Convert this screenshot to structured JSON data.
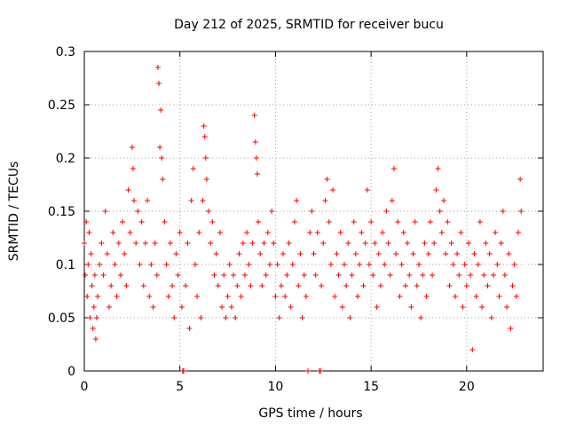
{
  "chart_data": {
    "type": "scatter",
    "title": "Day 212 of 2025, SRMTID for receiver bucu",
    "xlabel": "GPS time / hours",
    "ylabel": "SRMTID / TECUs",
    "xlim": [
      0,
      24
    ],
    "ylim": [
      0,
      0.3
    ],
    "xticks": [
      0,
      5,
      10,
      15,
      20
    ],
    "xtick_labels": [
      "0",
      "5",
      "10",
      "15",
      "20"
    ],
    "yticks": [
      0,
      0.05,
      0.1,
      0.15,
      0.2,
      0.25,
      0.3
    ],
    "ytick_labels": [
      "0",
      "0.05",
      "0.1",
      "0.15",
      "0.2",
      "0.25",
      "0.3"
    ],
    "grid": true,
    "marker": "+",
    "series_color": "#ff0000",
    "series": [
      {
        "name": "SRMTID",
        "points": [
          [
            0.0,
            0.12
          ],
          [
            0.05,
            0.09
          ],
          [
            0.1,
            0.14
          ],
          [
            0.15,
            0.07
          ],
          [
            0.2,
            0.1
          ],
          [
            0.25,
            0.13
          ],
          [
            0.3,
            0.05
          ],
          [
            0.35,
            0.11
          ],
          [
            0.4,
            0.08
          ],
          [
            0.45,
            0.04
          ],
          [
            0.5,
            0.06
          ],
          [
            0.55,
            0.09
          ],
          [
            0.6,
            0.03
          ],
          [
            0.65,
            0.05
          ],
          [
            0.7,
            0.07
          ],
          [
            0.8,
            0.1
          ],
          [
            0.9,
            0.12
          ],
          [
            1.0,
            0.09
          ],
          [
            1.1,
            0.15
          ],
          [
            1.2,
            0.11
          ],
          [
            1.3,
            0.06
          ],
          [
            1.4,
            0.08
          ],
          [
            1.5,
            0.13
          ],
          [
            1.6,
            0.1
          ],
          [
            1.7,
            0.07
          ],
          [
            1.8,
            0.12
          ],
          [
            1.9,
            0.09
          ],
          [
            2.0,
            0.14
          ],
          [
            2.1,
            0.11
          ],
          [
            2.2,
            0.08
          ],
          [
            2.3,
            0.17
          ],
          [
            2.4,
            0.13
          ],
          [
            2.5,
            0.21
          ],
          [
            2.55,
            0.19
          ],
          [
            2.6,
            0.16
          ],
          [
            2.7,
            0.12
          ],
          [
            2.8,
            0.15
          ],
          [
            2.9,
            0.1
          ],
          [
            3.0,
            0.14
          ],
          [
            3.1,
            0.08
          ],
          [
            3.2,
            0.12
          ],
          [
            3.3,
            0.16
          ],
          [
            3.4,
            0.07
          ],
          [
            3.5,
            0.1
          ],
          [
            3.6,
            0.06
          ],
          [
            3.7,
            0.12
          ],
          [
            3.8,
            0.09
          ],
          [
            3.85,
            0.285
          ],
          [
            3.9,
            0.27
          ],
          [
            3.95,
            0.21
          ],
          [
            4.0,
            0.245
          ],
          [
            4.05,
            0.2
          ],
          [
            4.1,
            0.18
          ],
          [
            4.2,
            0.14
          ],
          [
            4.3,
            0.1
          ],
          [
            4.4,
            0.07
          ],
          [
            4.5,
            0.12
          ],
          [
            4.6,
            0.08
          ],
          [
            4.7,
            0.05
          ],
          [
            4.8,
            0.11
          ],
          [
            4.9,
            0.09
          ],
          [
            5.0,
            0.13
          ],
          [
            5.1,
            0.06
          ],
          [
            5.15,
            0.0
          ],
          [
            5.2,
            0.0
          ],
          [
            5.3,
            0.08
          ],
          [
            5.4,
            0.12
          ],
          [
            5.5,
            0.04
          ],
          [
            5.6,
            0.16
          ],
          [
            5.7,
            0.19
          ],
          [
            5.8,
            0.1
          ],
          [
            5.9,
            0.07
          ],
          [
            6.0,
            0.13
          ],
          [
            6.1,
            0.05
          ],
          [
            6.2,
            0.16
          ],
          [
            6.25,
            0.23
          ],
          [
            6.3,
            0.22
          ],
          [
            6.35,
            0.2
          ],
          [
            6.4,
            0.18
          ],
          [
            6.5,
            0.15
          ],
          [
            6.6,
            0.12
          ],
          [
            6.7,
            0.14
          ],
          [
            6.8,
            0.09
          ],
          [
            6.9,
            0.11
          ],
          [
            7.0,
            0.08
          ],
          [
            7.1,
            0.13
          ],
          [
            7.2,
            0.06
          ],
          [
            7.3,
            0.09
          ],
          [
            7.4,
            0.05
          ],
          [
            7.5,
            0.07
          ],
          [
            7.6,
            0.1
          ],
          [
            7.7,
            0.06
          ],
          [
            7.8,
            0.09
          ],
          [
            7.9,
            0.05
          ],
          [
            8.0,
            0.08
          ],
          [
            8.1,
            0.11
          ],
          [
            8.2,
            0.07
          ],
          [
            8.3,
            0.12
          ],
          [
            8.4,
            0.09
          ],
          [
            8.5,
            0.13
          ],
          [
            8.6,
            0.1
          ],
          [
            8.7,
            0.08
          ],
          [
            8.8,
            0.12
          ],
          [
            8.9,
            0.24
          ],
          [
            8.95,
            0.215
          ],
          [
            9.0,
            0.2
          ],
          [
            9.05,
            0.185
          ],
          [
            9.1,
            0.14
          ],
          [
            9.2,
            0.11
          ],
          [
            9.3,
            0.08
          ],
          [
            9.4,
            0.12
          ],
          [
            9.5,
            0.09
          ],
          [
            9.6,
            0.13
          ],
          [
            9.7,
            0.1
          ],
          [
            9.8,
            0.15
          ],
          [
            9.9,
            0.12
          ],
          [
            10.0,
            0.07
          ],
          [
            10.1,
            0.1
          ],
          [
            10.2,
            0.05
          ],
          [
            10.3,
            0.08
          ],
          [
            10.4,
            0.11
          ],
          [
            10.5,
            0.07
          ],
          [
            10.6,
            0.09
          ],
          [
            10.7,
            0.12
          ],
          [
            10.8,
            0.06
          ],
          [
            10.9,
            0.1
          ],
          [
            11.0,
            0.14
          ],
          [
            11.1,
            0.16
          ],
          [
            11.2,
            0.08
          ],
          [
            11.3,
            0.11
          ],
          [
            11.4,
            0.05
          ],
          [
            11.5,
            0.09
          ],
          [
            11.6,
            0.07
          ],
          [
            11.7,
            0.0
          ],
          [
            11.8,
            0.13
          ],
          [
            11.9,
            0.15
          ],
          [
            12.0,
            0.11
          ],
          [
            12.1,
            0.09
          ],
          [
            12.2,
            0.13
          ],
          [
            12.3,
            0.0
          ],
          [
            12.35,
            0.0
          ],
          [
            12.4,
            0.08
          ],
          [
            12.5,
            0.12
          ],
          [
            12.6,
            0.16
          ],
          [
            12.7,
            0.18
          ],
          [
            12.8,
            0.14
          ],
          [
            12.9,
            0.1
          ],
          [
            13.0,
            0.17
          ],
          [
            13.1,
            0.07
          ],
          [
            13.2,
            0.11
          ],
          [
            13.3,
            0.09
          ],
          [
            13.4,
            0.13
          ],
          [
            13.5,
            0.06
          ],
          [
            13.6,
            0.1
          ],
          [
            13.7,
            0.08
          ],
          [
            13.8,
            0.12
          ],
          [
            13.9,
            0.05
          ],
          [
            14.0,
            0.09
          ],
          [
            14.1,
            0.14
          ],
          [
            14.2,
            0.11
          ],
          [
            14.3,
            0.07
          ],
          [
            14.4,
            0.1
          ],
          [
            14.5,
            0.13
          ],
          [
            14.6,
            0.08
          ],
          [
            14.7,
            0.12
          ],
          [
            14.8,
            0.17
          ],
          [
            14.9,
            0.1
          ],
          [
            15.0,
            0.14
          ],
          [
            15.1,
            0.09
          ],
          [
            15.2,
            0.12
          ],
          [
            15.3,
            0.06
          ],
          [
            15.4,
            0.11
          ],
          [
            15.5,
            0.08
          ],
          [
            15.6,
            0.13
          ],
          [
            15.7,
            0.1
          ],
          [
            15.8,
            0.15
          ],
          [
            15.9,
            0.12
          ],
          [
            16.0,
            0.09
          ],
          [
            16.1,
            0.16
          ],
          [
            16.2,
            0.19
          ],
          [
            16.3,
            0.11
          ],
          [
            16.4,
            0.14
          ],
          [
            16.5,
            0.07
          ],
          [
            16.6,
            0.1
          ],
          [
            16.7,
            0.13
          ],
          [
            16.8,
            0.08
          ],
          [
            16.9,
            0.12
          ],
          [
            17.0,
            0.09
          ],
          [
            17.1,
            0.06
          ],
          [
            17.2,
            0.11
          ],
          [
            17.3,
            0.14
          ],
          [
            17.4,
            0.08
          ],
          [
            17.5,
            0.1
          ],
          [
            17.6,
            0.05
          ],
          [
            17.7,
            0.09
          ],
          [
            17.8,
            0.12
          ],
          [
            17.9,
            0.07
          ],
          [
            18.0,
            0.11
          ],
          [
            18.1,
            0.14
          ],
          [
            18.2,
            0.09
          ],
          [
            18.3,
            0.12
          ],
          [
            18.4,
            0.17
          ],
          [
            18.5,
            0.19
          ],
          [
            18.6,
            0.15
          ],
          [
            18.7,
            0.13
          ],
          [
            18.8,
            0.16
          ],
          [
            18.9,
            0.11
          ],
          [
            19.0,
            0.14
          ],
          [
            19.1,
            0.08
          ],
          [
            19.2,
            0.12
          ],
          [
            19.3,
            0.1
          ],
          [
            19.4,
            0.07
          ],
          [
            19.5,
            0.11
          ],
          [
            19.6,
            0.09
          ],
          [
            19.7,
            0.13
          ],
          [
            19.8,
            0.06
          ],
          [
            19.9,
            0.1
          ],
          [
            20.0,
            0.08
          ],
          [
            20.1,
            0.12
          ],
          [
            20.2,
            0.09
          ],
          [
            20.3,
            0.02
          ],
          [
            20.4,
            0.11
          ],
          [
            20.5,
            0.07
          ],
          [
            20.6,
            0.1
          ],
          [
            20.7,
            0.14
          ],
          [
            20.8,
            0.06
          ],
          [
            20.9,
            0.09
          ],
          [
            21.0,
            0.12
          ],
          [
            21.1,
            0.08
          ],
          [
            21.2,
            0.11
          ],
          [
            21.3,
            0.05
          ],
          [
            21.4,
            0.09
          ],
          [
            21.5,
            0.13
          ],
          [
            21.6,
            0.1
          ],
          [
            21.7,
            0.07
          ],
          [
            21.8,
            0.12
          ],
          [
            21.9,
            0.15
          ],
          [
            22.0,
            0.09
          ],
          [
            22.1,
            0.06
          ],
          [
            22.2,
            0.11
          ],
          [
            22.3,
            0.04
          ],
          [
            22.4,
            0.08
          ],
          [
            22.5,
            0.1
          ],
          [
            22.6,
            0.07
          ],
          [
            22.7,
            0.13
          ],
          [
            22.8,
            0.18
          ],
          [
            22.85,
            0.15
          ]
        ]
      }
    ]
  }
}
